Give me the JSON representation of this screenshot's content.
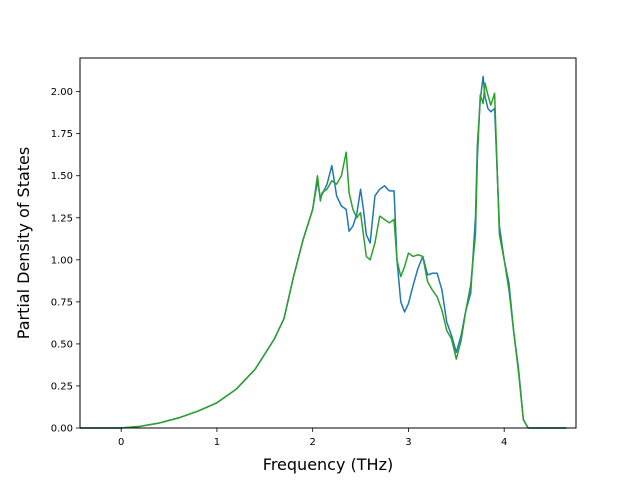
{
  "chart_data": {
    "type": "line",
    "xlabel": "Frequency (THz)",
    "ylabel": "Partial Density of States",
    "xlim": [
      -0.43,
      4.75
    ],
    "ylim": [
      0.0,
      2.2
    ],
    "x_ticks": [
      0,
      1,
      2,
      3,
      4
    ],
    "x_tick_labels": [
      "0",
      "1",
      "2",
      "3",
      "4"
    ],
    "y_ticks": [
      0.0,
      0.25,
      0.5,
      0.75,
      1.0,
      1.25,
      1.5,
      1.75,
      2.0
    ],
    "y_tick_labels": [
      "0.00",
      "0.25",
      "0.50",
      "0.75",
      "1.00",
      "1.25",
      "1.50",
      "1.75",
      "2.00"
    ],
    "grid": false,
    "series": [
      {
        "color": "#1f77b4",
        "x": [
          -0.43,
          -0.2,
          0.0,
          0.2,
          0.4,
          0.6,
          0.8,
          1.0,
          1.2,
          1.4,
          1.6,
          1.7,
          1.8,
          1.9,
          2.0,
          2.05,
          2.08,
          2.1,
          2.15,
          2.2,
          2.25,
          2.3,
          2.35,
          2.38,
          2.42,
          2.46,
          2.5,
          2.53,
          2.56,
          2.6,
          2.65,
          2.7,
          2.75,
          2.8,
          2.85,
          2.88,
          2.92,
          2.96,
          3.0,
          3.05,
          3.1,
          3.15,
          3.2,
          3.25,
          3.3,
          3.35,
          3.4,
          3.45,
          3.5,
          3.55,
          3.6,
          3.65,
          3.7,
          3.72,
          3.75,
          3.78,
          3.8,
          3.83,
          3.86,
          3.9,
          3.95,
          4.0,
          4.05,
          4.1,
          4.15,
          4.2,
          4.25,
          4.3,
          4.5,
          4.65
        ],
        "y": [
          0.0,
          0.0,
          0.0,
          0.01,
          0.03,
          0.06,
          0.1,
          0.15,
          0.23,
          0.35,
          0.53,
          0.65,
          0.9,
          1.12,
          1.3,
          1.47,
          1.37,
          1.39,
          1.45,
          1.56,
          1.38,
          1.32,
          1.3,
          1.17,
          1.2,
          1.27,
          1.42,
          1.3,
          1.15,
          1.1,
          1.38,
          1.42,
          1.44,
          1.41,
          1.41,
          1.0,
          0.75,
          0.69,
          0.74,
          0.85,
          0.95,
          1.02,
          0.91,
          0.92,
          0.92,
          0.82,
          0.63,
          0.55,
          0.45,
          0.55,
          0.7,
          0.8,
          1.25,
          1.68,
          1.95,
          2.09,
          1.97,
          1.9,
          1.88,
          1.9,
          1.2,
          1.0,
          0.86,
          0.57,
          0.35,
          0.05,
          0.0,
          0.0,
          0.0,
          0.0
        ]
      },
      {
        "color": "#2ca02c",
        "x": [
          -0.43,
          -0.2,
          0.0,
          0.2,
          0.4,
          0.6,
          0.8,
          1.0,
          1.2,
          1.4,
          1.6,
          1.7,
          1.8,
          1.9,
          2.0,
          2.05,
          2.08,
          2.1,
          2.15,
          2.2,
          2.25,
          2.3,
          2.35,
          2.38,
          2.42,
          2.46,
          2.5,
          2.53,
          2.56,
          2.6,
          2.65,
          2.7,
          2.75,
          2.8,
          2.85,
          2.88,
          2.92,
          2.96,
          3.0,
          3.05,
          3.1,
          3.15,
          3.2,
          3.25,
          3.3,
          3.35,
          3.4,
          3.45,
          3.5,
          3.55,
          3.6,
          3.65,
          3.7,
          3.72,
          3.75,
          3.78,
          3.8,
          3.83,
          3.86,
          3.9,
          3.95,
          4.0,
          4.05,
          4.1,
          4.15,
          4.2,
          4.25,
          4.3,
          4.5,
          4.65
        ],
        "y": [
          0.0,
          0.0,
          0.0,
          0.01,
          0.03,
          0.06,
          0.1,
          0.15,
          0.23,
          0.35,
          0.53,
          0.65,
          0.9,
          1.12,
          1.3,
          1.5,
          1.35,
          1.4,
          1.42,
          1.47,
          1.45,
          1.5,
          1.64,
          1.4,
          1.3,
          1.25,
          1.28,
          1.15,
          1.02,
          1.0,
          1.1,
          1.26,
          1.24,
          1.22,
          1.24,
          1.0,
          0.9,
          0.96,
          1.04,
          1.02,
          1.03,
          1.02,
          0.87,
          0.82,
          0.78,
          0.7,
          0.58,
          0.53,
          0.41,
          0.52,
          0.7,
          0.85,
          1.15,
          1.6,
          1.98,
          1.93,
          2.05,
          1.98,
          1.92,
          1.99,
          1.15,
          1.0,
          0.82,
          0.57,
          0.33,
          0.05,
          0.0,
          0.0,
          0.0,
          0.0
        ]
      }
    ]
  }
}
